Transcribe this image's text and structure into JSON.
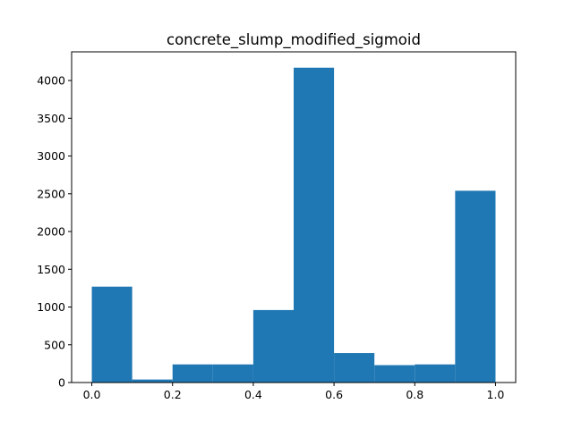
{
  "chart_data": {
    "type": "bar",
    "title": "concrete_slump_modified_sigmoid",
    "xlabel": "",
    "ylabel": "",
    "bin_edges": [
      0.0,
      0.1,
      0.2,
      0.3,
      0.4,
      0.5,
      0.6,
      0.7,
      0.8,
      0.9,
      1.0
    ],
    "values": [
      1270,
      40,
      240,
      240,
      960,
      4170,
      390,
      230,
      240,
      2540
    ],
    "xlim": [
      -0.05,
      1.05
    ],
    "ylim": [
      0,
      4380
    ],
    "xticks": [
      0.0,
      0.2,
      0.4,
      0.6,
      0.8,
      1.0
    ],
    "xtick_labels": [
      "0.0",
      "0.2",
      "0.4",
      "0.6",
      "0.8",
      "1.0"
    ],
    "yticks": [
      0,
      500,
      1000,
      1500,
      2000,
      2500,
      3000,
      3500,
      4000
    ],
    "ytick_labels": [
      "0",
      "500",
      "1000",
      "1500",
      "2000",
      "2500",
      "3000",
      "3500",
      "4000"
    ],
    "bar_color": "#1f77b4",
    "grid": false,
    "legend": "none"
  }
}
